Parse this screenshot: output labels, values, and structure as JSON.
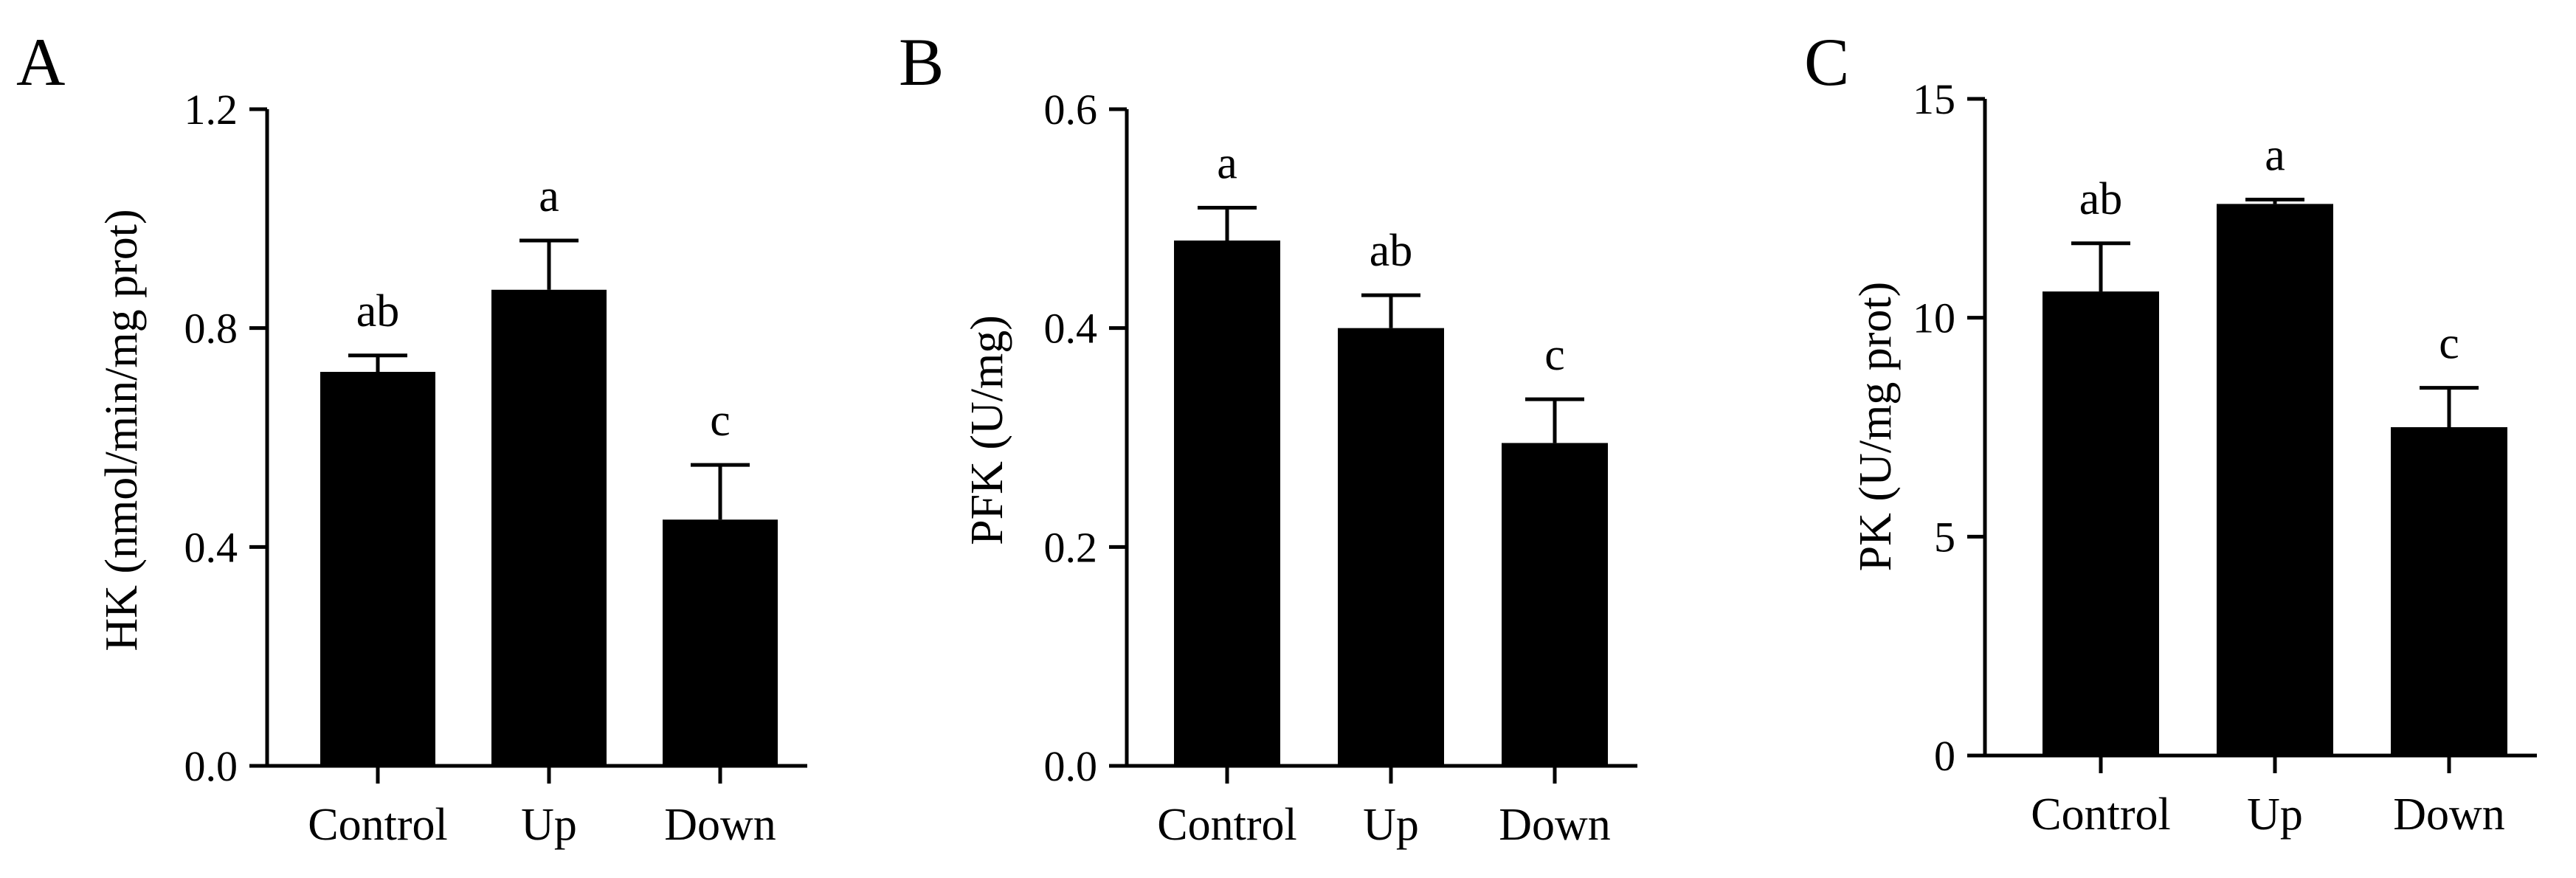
{
  "figure": {
    "colors": {
      "bar": "#000000",
      "axis": "#000000",
      "background": "#ffffff"
    }
  },
  "chart_data": [
    {
      "panel": "A",
      "type": "bar",
      "categories": [
        "Control",
        "Up",
        "Down"
      ],
      "values": [
        0.72,
        0.87,
        0.45
      ],
      "errors": [
        0.03,
        0.09,
        0.1
      ],
      "significance": [
        "ab",
        "a",
        "c"
      ],
      "ylabel": "HK (nmol/min/mg prot)",
      "ylim": [
        0,
        1.2
      ],
      "yticks": [
        "0.0",
        "0.4",
        "0.8",
        "1.2"
      ],
      "ytick_values": [
        0,
        0.4,
        0.8,
        1.2
      ],
      "grid": false,
      "legend": "none"
    },
    {
      "panel": "B",
      "type": "bar",
      "categories": [
        "Control",
        "Up",
        "Down"
      ],
      "values": [
        0.48,
        0.4,
        0.295
      ],
      "errors": [
        0.03,
        0.03,
        0.04
      ],
      "significance": [
        "a",
        "ab",
        "c"
      ],
      "ylabel": "PFK (U/mg)",
      "ylim": [
        0,
        0.6
      ],
      "yticks": [
        "0.0",
        "0.2",
        "0.4",
        "0.6"
      ],
      "ytick_values": [
        0,
        0.2,
        0.4,
        0.6
      ],
      "grid": false,
      "legend": "none"
    },
    {
      "panel": "C",
      "type": "bar",
      "categories": [
        "Control",
        "Up",
        "Down"
      ],
      "values": [
        10.6,
        12.6,
        7.5
      ],
      "errors": [
        1.1,
        0.1,
        0.9
      ],
      "significance": [
        "ab",
        "a",
        "c"
      ],
      "ylabel": "PK (U/mg prot)",
      "ylim": [
        0,
        15
      ],
      "yticks": [
        "0",
        "5",
        "10",
        "15"
      ],
      "ytick_values": [
        0,
        5,
        10,
        15
      ],
      "grid": false,
      "legend": "none"
    }
  ]
}
